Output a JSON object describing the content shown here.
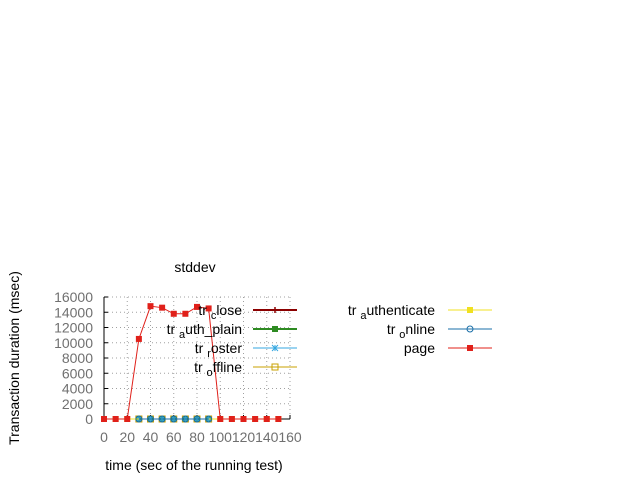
{
  "chart_data": {
    "type": "line",
    "title": "stddev",
    "xlabel": "time (sec of the running test)",
    "ylabel": "Transaction duration (msec)",
    "xlim": [
      0,
      160
    ],
    "ylim": [
      0,
      16000
    ],
    "x_ticks": [
      "0",
      "20",
      "40",
      "60",
      "80",
      "100",
      "120",
      "140",
      "160"
    ],
    "y_ticks": [
      "0",
      "2000",
      "4000",
      "6000",
      "8000",
      "10000",
      "12000",
      "14000",
      "16000"
    ],
    "grid": true,
    "legend_left": [
      {
        "prefix": "tr",
        "sub": "c",
        "rest": "lose",
        "color": "#8b0000",
        "marker": "plus",
        "linewidth": 2
      },
      {
        "prefix": "tr",
        "sub": "a",
        "rest": "uth_plain",
        "rest_parts": [
          "uth",
          "p",
          "lain"
        ],
        "color": "#2e8b22",
        "marker": "filled-square",
        "linewidth": 2
      },
      {
        "prefix": "tr",
        "sub": "r",
        "rest": "oster",
        "color": "#35a7e0",
        "marker": "star",
        "linewidth": 1
      },
      {
        "prefix": "tr",
        "sub": "o",
        "rest": "ffline",
        "color": "#c8a000",
        "marker": "open-square",
        "linewidth": 1
      }
    ],
    "legend_right": [
      {
        "prefix": "tr",
        "sub": "a",
        "rest": "uthenticate",
        "color": "#f0e020",
        "marker": "filled-square",
        "linewidth": 1
      },
      {
        "prefix": "tr",
        "sub": "o",
        "rest": "nline",
        "color": "#1a6fa8",
        "marker": "open-circle",
        "linewidth": 1
      },
      {
        "prefix": "",
        "sub": "",
        "rest": "page",
        "color": "#e0201a",
        "marker": "filled-square",
        "linewidth": 1
      }
    ],
    "series": [
      {
        "name": "tr_close",
        "color": "#8b0000",
        "marker": "plus",
        "x": [
          30,
          40,
          50,
          60,
          70,
          80,
          90
        ],
        "y": [
          0,
          0,
          0,
          0,
          0,
          0,
          0
        ]
      },
      {
        "name": "tr_auth_plain",
        "color": "#2e8b22",
        "marker": "filled-square",
        "x": [
          30,
          40,
          50,
          60,
          70,
          80,
          90
        ],
        "y": [
          0,
          0,
          0,
          0,
          0,
          0,
          0
        ]
      },
      {
        "name": "tr_roster",
        "color": "#35a7e0",
        "marker": "star",
        "x": [
          30,
          40,
          50,
          60,
          70,
          80,
          90
        ],
        "y": [
          0,
          0,
          0,
          0,
          0,
          0,
          0
        ]
      },
      {
        "name": "tr_offline",
        "color": "#c8a000",
        "marker": "open-square",
        "x": [
          30,
          40,
          50,
          60,
          70,
          80,
          90
        ],
        "y": [
          0,
          0,
          0,
          0,
          0,
          0,
          0
        ]
      },
      {
        "name": "tr_authenticate",
        "color": "#f0e020",
        "marker": "filled-square",
        "x": [
          0,
          10,
          20,
          100,
          110,
          120,
          130,
          140,
          150
        ],
        "y": [
          0,
          0,
          0,
          0,
          0,
          0,
          0,
          0,
          0
        ]
      },
      {
        "name": "tr_online",
        "color": "#1a6fa8",
        "marker": "open-circle",
        "x": [
          30,
          40,
          50,
          60,
          70,
          80,
          90
        ],
        "y": [
          0,
          0,
          0,
          0,
          0,
          0,
          0
        ]
      },
      {
        "name": "page",
        "color": "#e0201a",
        "marker": "filled-square",
        "x": [
          0,
          10,
          20,
          30,
          40,
          50,
          60,
          70,
          80,
          90,
          100,
          110,
          120,
          130,
          140,
          150
        ],
        "y": [
          0,
          0,
          0,
          10500,
          14800,
          14600,
          13800,
          13800,
          14700,
          14500,
          0,
          0,
          0,
          0,
          0,
          0
        ]
      }
    ]
  }
}
